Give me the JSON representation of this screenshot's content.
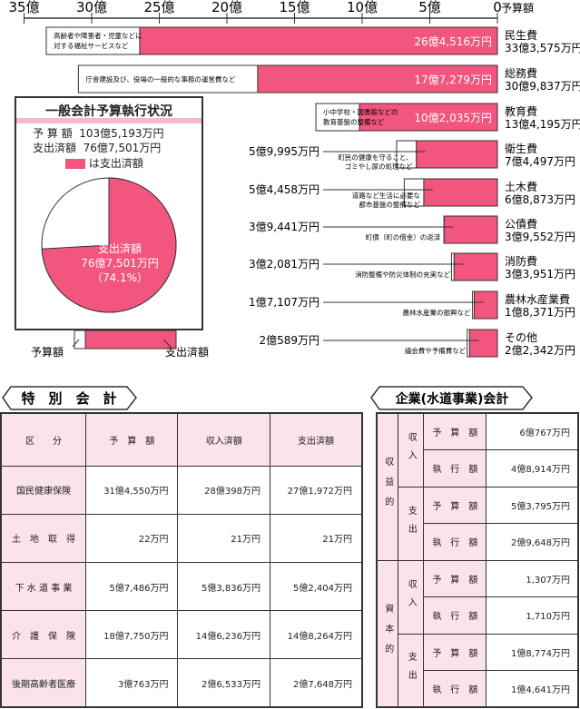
{
  "colors": {
    "spent": "#f2557d",
    "budget": "#ffffff",
    "table_pink": "#fbe3ea",
    "summary_band": "#f6b9c9"
  },
  "chart_data": [
    {
      "type": "bar",
      "orientation": "horizontal",
      "x_direction": "right-to-left",
      "title": "",
      "xlabel": "予算額",
      "ticks": [
        "35億",
        "30億",
        "25億",
        "20億",
        "15億",
        "10億",
        "5億",
        "0"
      ],
      "xlim": [
        0,
        35
      ],
      "unit": "億円",
      "categories": [
        "民生費",
        "総務費",
        "教育費",
        "衛生費",
        "土木費",
        "公債費",
        "消防費",
        "農林水産業費",
        "その他"
      ],
      "series": [
        {
          "name": "予算額",
          "values": [
            33.3575,
            30.9837,
            13.4195,
            7.4497,
            6.8873,
            3.9552,
            3.3951,
            1.8371,
            2.2342
          ]
        },
        {
          "name": "支出済額",
          "values": [
            26.4516,
            17.7279,
            10.2035,
            5.9995,
            5.4458,
            3.9441,
            3.2081,
            1.7107,
            2.0589
          ]
        }
      ],
      "budget_labels": [
        "33億3,575万円",
        "30億9,837万円",
        "13億4,195万円",
        "7億4,497万円",
        "6億8,873万円",
        "3億9,552万円",
        "3億3,951万円",
        "1億8,371万円",
        "2億2,342万円"
      ],
      "spent_labels": [
        "26億4,516万円",
        "17億7,279万円",
        "10億2,035万円",
        "5億9,995万円",
        "5億4,458万円",
        "3億9,441万円",
        "3億2,081万円",
        "1億7,107万円",
        "2億589万円"
      ],
      "descriptions": [
        [
          "高齢者や障害者・児童などに",
          "対する福祉サービスなど"
        ],
        [
          "庁舎建設及び、役場の一般的な事務の運営費など"
        ],
        [
          "小中学校・図書館などの",
          "教育基盤の整備など"
        ],
        [
          "町民の健康を守ること、",
          "ゴミやし尿の処理など"
        ],
        [
          "道路など生活に必要な",
          "都市基盤の整備など"
        ],
        [
          "町債（町の借金）の返済"
        ],
        [
          "消防整備や防災体制の充実など"
        ],
        [
          "農林水産業の振興など"
        ],
        [
          "議会費や予備費など"
        ]
      ]
    },
    {
      "type": "pie",
      "title": "一般会計予算執行状況",
      "budget_label": "予 算 額",
      "budget_value": "103億5,193万円",
      "spent_label": "支出済額",
      "spent_value": "76億7,501万円",
      "legend_text": "は支出済額",
      "slice_label": "支出済額",
      "slice_value": "76億7,501万円",
      "slice_percent": "（74.1%）",
      "percent": 74.1
    }
  ],
  "legend_key": {
    "budget": "予算額",
    "spent": "支出済額"
  },
  "special": {
    "title": "特　別　会　計",
    "headers": [
      "区　　分",
      "予　算　額",
      "収入済額",
      "支出済額"
    ],
    "rows": [
      {
        "name": "国民健康保険",
        "budget": "31億4,550万円",
        "income": "28億398万円",
        "spent": "27億1,972万円"
      },
      {
        "name": "土　地　取　得",
        "budget": "22万円",
        "income": "21万円",
        "spent": "21万円"
      },
      {
        "name": "下 水 道 事 業",
        "budget": "5億7,486万円",
        "income": "5億3,836万円",
        "spent": "5億2,404万円"
      },
      {
        "name": "介　護　保　険",
        "budget": "18億7,750万円",
        "income": "14億6,236万円",
        "spent": "14億8,264万円"
      },
      {
        "name": "後期高齢者医療",
        "budget": "3億763万円",
        "income": "2億6,533万円",
        "spent": "2億7,648万円"
      }
    ]
  },
  "enterprise": {
    "title": "企業(水道事業)会計",
    "groups": [
      {
        "label": "収益的",
        "subs": [
          {
            "label": "収入",
            "rows": [
              {
                "k": "予　算　額",
                "v": "6億767万円"
              },
              {
                "k": "執　行　額",
                "v": "4億8,914万円"
              }
            ]
          },
          {
            "label": "支出",
            "rows": [
              {
                "k": "予　算　額",
                "v": "5億3,795万円"
              },
              {
                "k": "執　行　額",
                "v": "2億9,648万円"
              }
            ]
          }
        ]
      },
      {
        "label": "資本的",
        "subs": [
          {
            "label": "収入",
            "rows": [
              {
                "k": "予　算　額",
                "v": "1,307万円"
              },
              {
                "k": "執　行　額",
                "v": "1,710万円"
              }
            ]
          },
          {
            "label": "支出",
            "rows": [
              {
                "k": "予　算　額",
                "v": "1億8,774万円"
              },
              {
                "k": "執　行　額",
                "v": "1億4,641万円"
              }
            ]
          }
        ]
      }
    ]
  }
}
